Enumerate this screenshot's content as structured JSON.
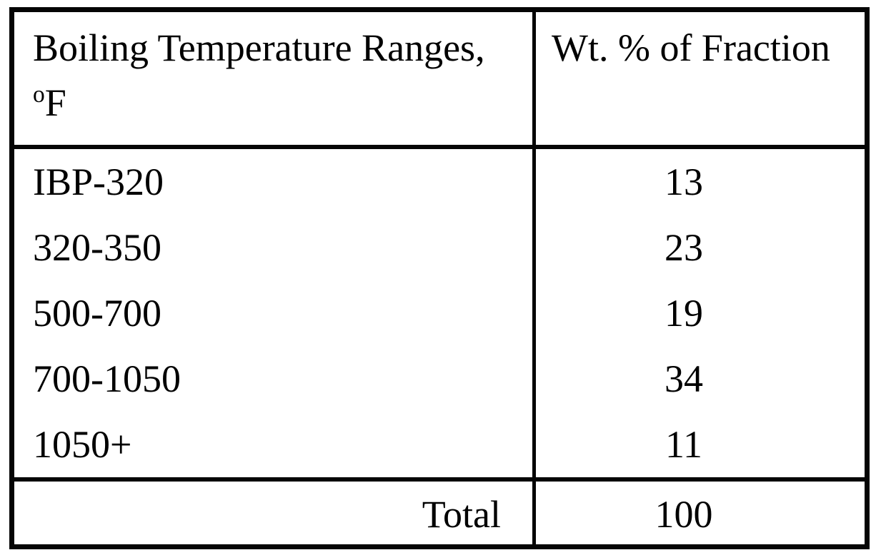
{
  "table": {
    "header": {
      "col1_line1": "Boiling Temperature Ranges,",
      "col1_degree": "o",
      "col1_unit": "F",
      "col2": "Wt. % of Fraction"
    },
    "rows": [
      {
        "range": "IBP-320",
        "value": "13"
      },
      {
        "range": "320-350",
        "value": "23"
      },
      {
        "range": "500-700",
        "value": "19"
      },
      {
        "range": "700-1050",
        "value": "34"
      },
      {
        "range": "1050+",
        "value": "11"
      }
    ],
    "total": {
      "label": "Total",
      "value": "100"
    }
  },
  "colors": {
    "border": "#050505",
    "background": "#ffffff",
    "text": "#000000"
  },
  "chart_data": {
    "type": "table",
    "title": "",
    "columns": [
      "Boiling Temperature Ranges, °F",
      "Wt. % of Fraction"
    ],
    "categories": [
      "IBP-320",
      "320-350",
      "500-700",
      "700-1050",
      "1050+"
    ],
    "values": [
      13,
      23,
      19,
      34,
      11
    ],
    "total": 100
  }
}
